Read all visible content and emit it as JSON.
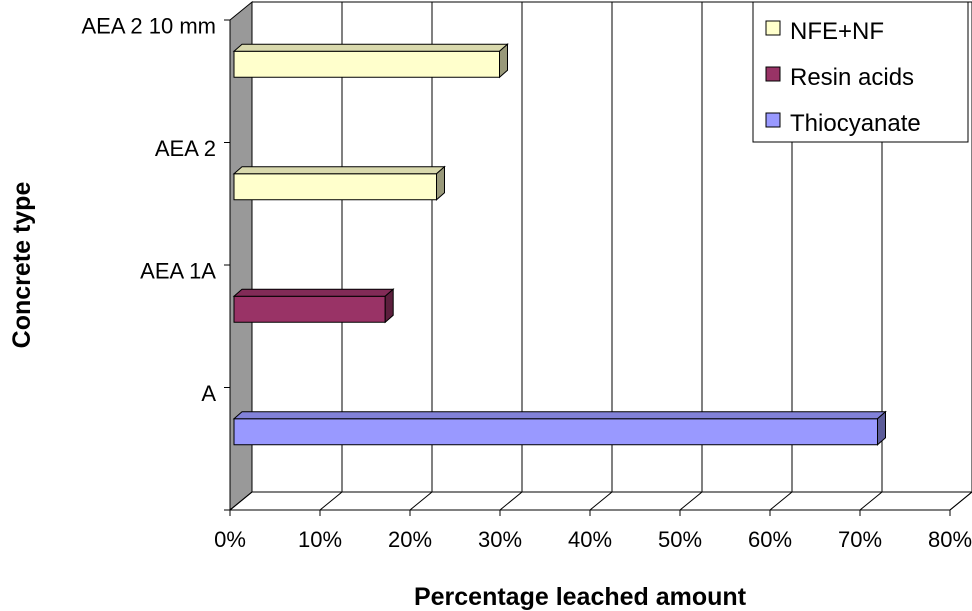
{
  "chart_data": {
    "type": "bar",
    "orientation": "horizontal",
    "style": "3d",
    "xlabel": "Percentage leached amount",
    "ylabel": "Concrete type",
    "xlim": [
      0,
      80
    ],
    "x_ticks": [
      "0%",
      "10%",
      "20%",
      "30%",
      "40%",
      "50%",
      "60%",
      "70%",
      "80%"
    ],
    "categories": [
      "A",
      "AEA 1A",
      "AEA 2",
      "AEA 2 10 mm"
    ],
    "series": [
      {
        "name": "NFE+NF",
        "color": "#ffffcc",
        "values": [
          null,
          null,
          22.5,
          29.5
        ]
      },
      {
        "name": "Resin acids",
        "color": "#993366",
        "values": [
          null,
          16.8,
          null,
          null
        ]
      },
      {
        "name": "Thiocyanate",
        "color": "#9999ff",
        "values": [
          71.5,
          null,
          null,
          null
        ]
      }
    ],
    "grid": "vertical",
    "legend_position": "top-right"
  }
}
